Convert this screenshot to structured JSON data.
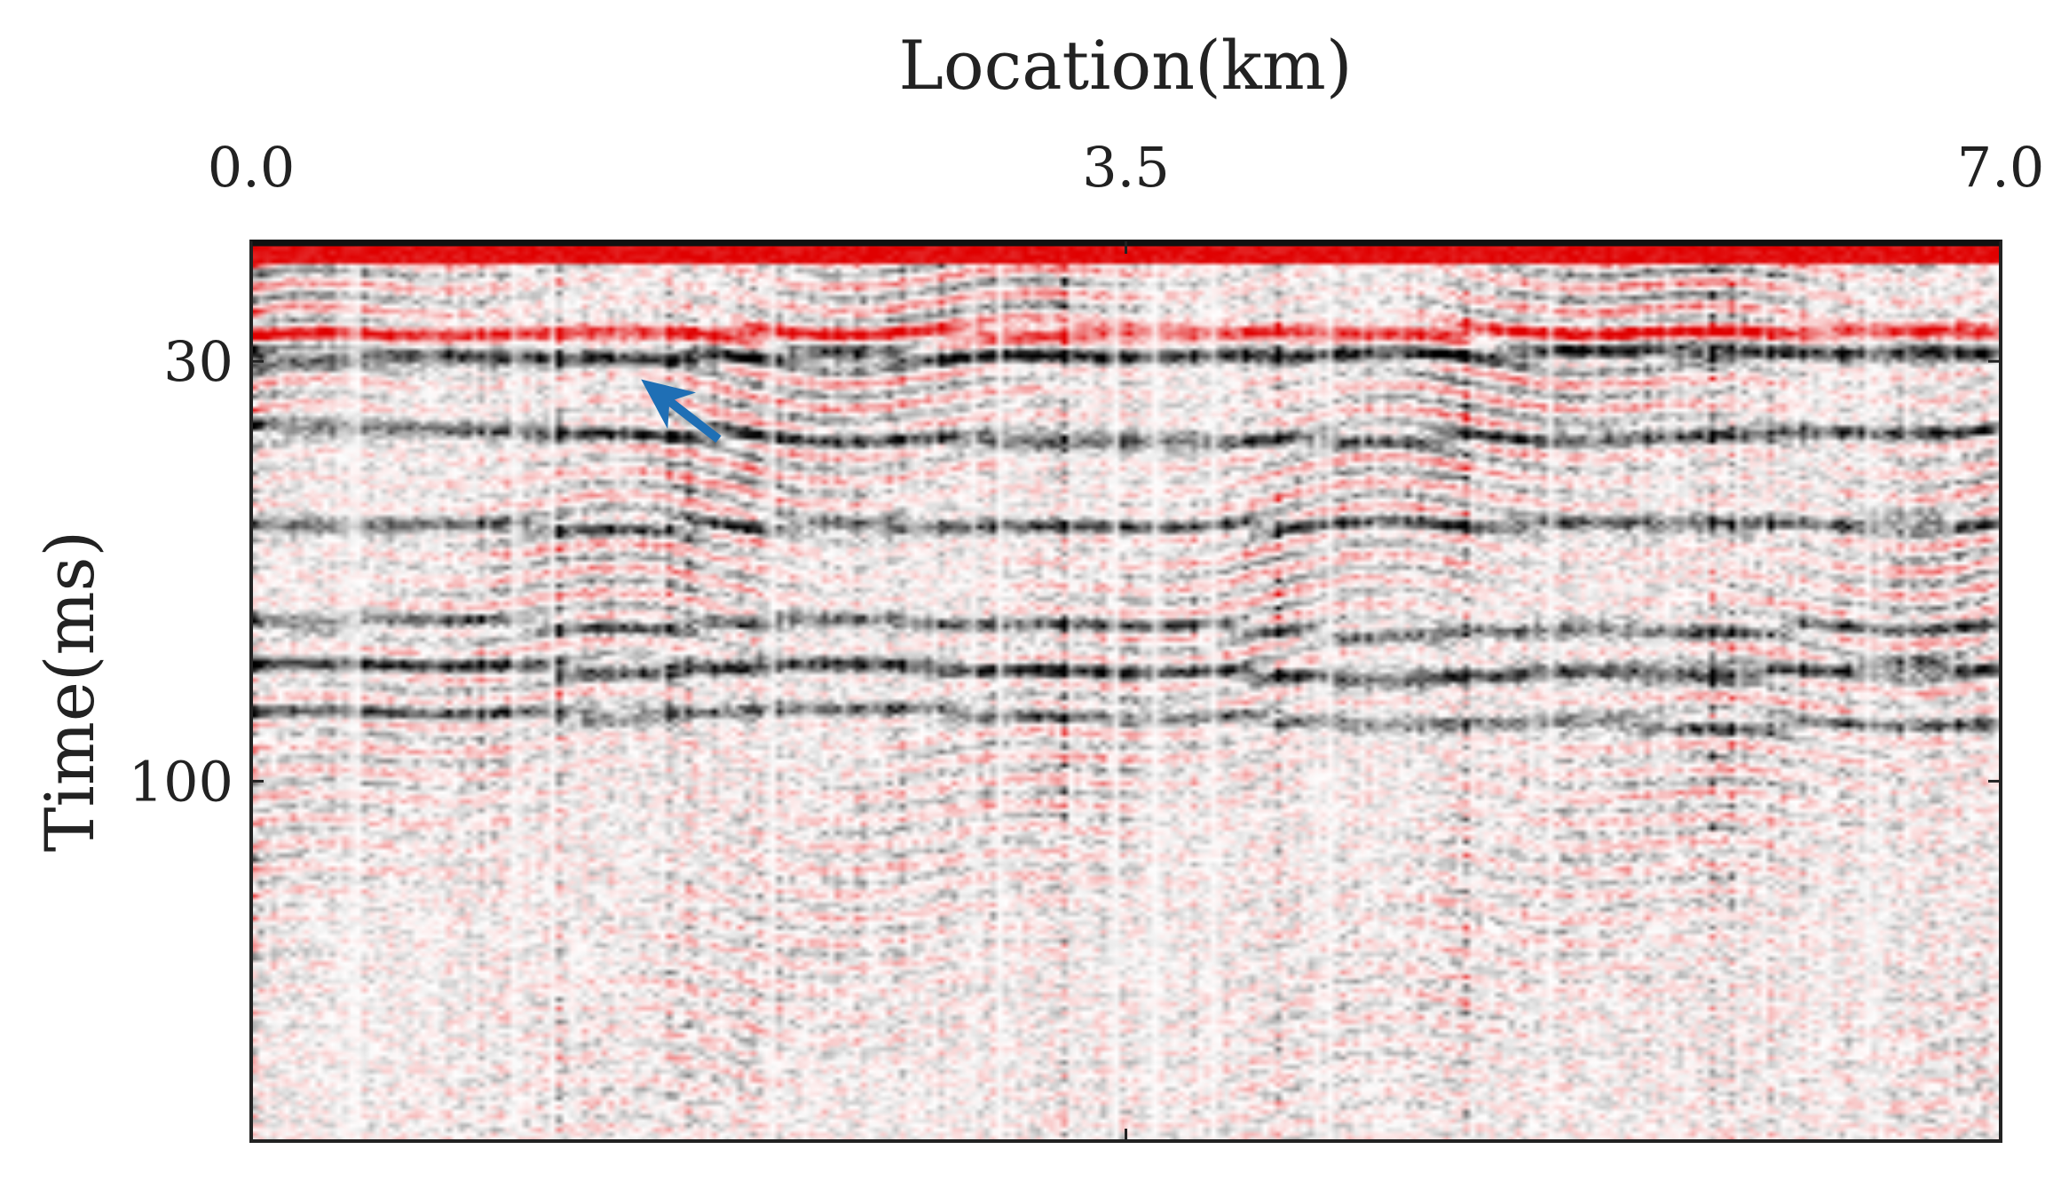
{
  "chart_data": {
    "type": "heatmap",
    "title": "",
    "xlabel": "Location(km)",
    "ylabel": "Time(ms)",
    "x_axis_position": "top",
    "xlim": [
      0.0,
      7.0
    ],
    "xticks": [
      0.0,
      3.5,
      7.0
    ],
    "xtick_labels": [
      "0.0",
      "3.5",
      "7.0"
    ],
    "ylim": [
      10,
      160
    ],
    "y_inverted": true,
    "yticks": [
      30,
      100
    ],
    "ytick_labels": [
      "30",
      "100"
    ],
    "colormap": {
      "negative": "#e00000",
      "zero": "#ffffff",
      "positive": "#000000"
    },
    "grid": false,
    "legend": "none",
    "annotation": {
      "type": "arrow",
      "color": "#1f6fb5",
      "from": {
        "x": 1.87,
        "t": 43
      },
      "to": {
        "x": 1.56,
        "t": 33
      }
    },
    "reflectors": [
      {
        "t": 29.5,
        "polarity": 1,
        "strength": 0.95,
        "dip": [
          [
            0.0,
            29.5
          ],
          [
            3.5,
            29.2
          ],
          [
            7.0,
            28.5
          ]
        ]
      },
      {
        "t": 25.5,
        "polarity": -1,
        "strength": 0.9,
        "dip": [
          [
            0.0,
            25.5
          ],
          [
            7.0,
            25.0
          ]
        ]
      },
      {
        "t": 42.0,
        "polarity": 1,
        "strength": 0.75,
        "dip": [
          [
            0.0,
            41.0
          ],
          [
            3.5,
            43.5
          ],
          [
            7.0,
            41.5
          ]
        ]
      },
      {
        "t": 57.5,
        "polarity": 1,
        "strength": 0.7,
        "dip": [
          [
            0.0,
            57.5
          ],
          [
            3.5,
            57.5
          ],
          [
            7.0,
            57.0
          ]
        ]
      },
      {
        "t": 74.0,
        "polarity": 1,
        "strength": 0.6,
        "dip": [
          [
            0.0,
            73.0
          ],
          [
            3.5,
            74.5
          ],
          [
            7.0,
            75.0
          ]
        ]
      },
      {
        "t": 81.0,
        "polarity": 1,
        "strength": 0.85,
        "dip": [
          [
            0.0,
            80.0
          ],
          [
            3.5,
            82.0
          ],
          [
            7.0,
            82.0
          ]
        ]
      },
      {
        "t": 89.0,
        "polarity": 1,
        "strength": 0.6,
        "dip": [
          [
            0.0,
            88.0
          ],
          [
            3.5,
            89.0
          ],
          [
            7.0,
            91.5
          ]
        ]
      }
    ]
  }
}
